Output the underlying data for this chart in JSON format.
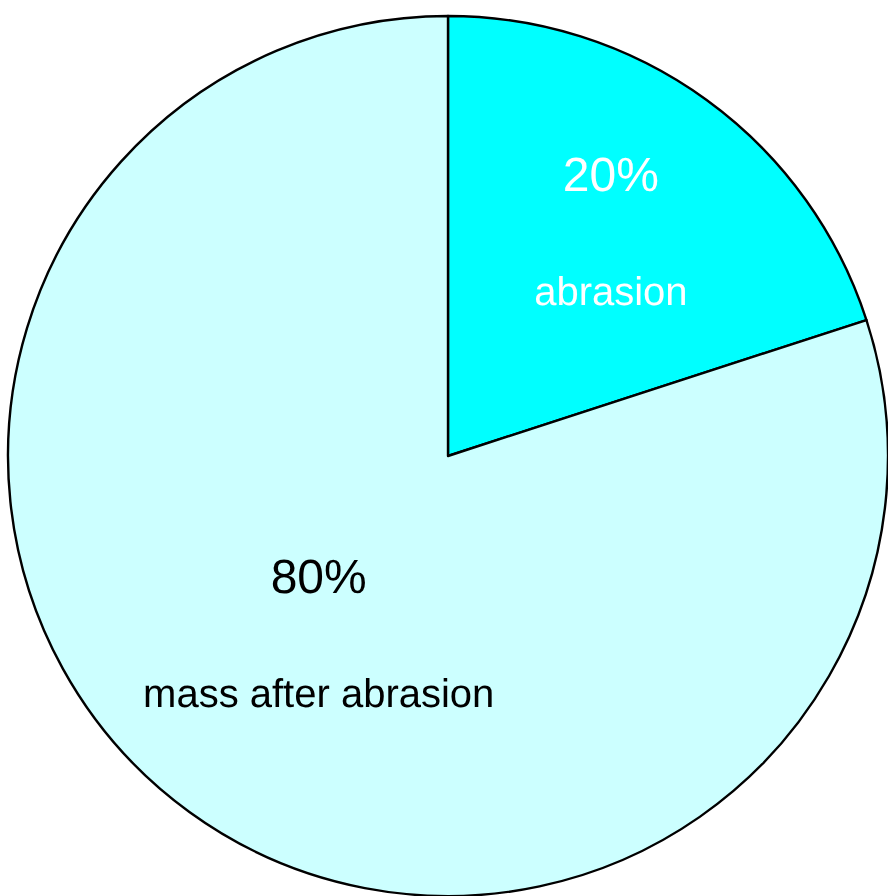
{
  "chart_data": {
    "type": "pie",
    "categories": [
      "abrasion",
      "mass after abrasion"
    ],
    "values": [
      20,
      80
    ],
    "value_labels": [
      "20%",
      "80%"
    ],
    "colors": [
      "#00ffff",
      "#ccffff"
    ]
  }
}
